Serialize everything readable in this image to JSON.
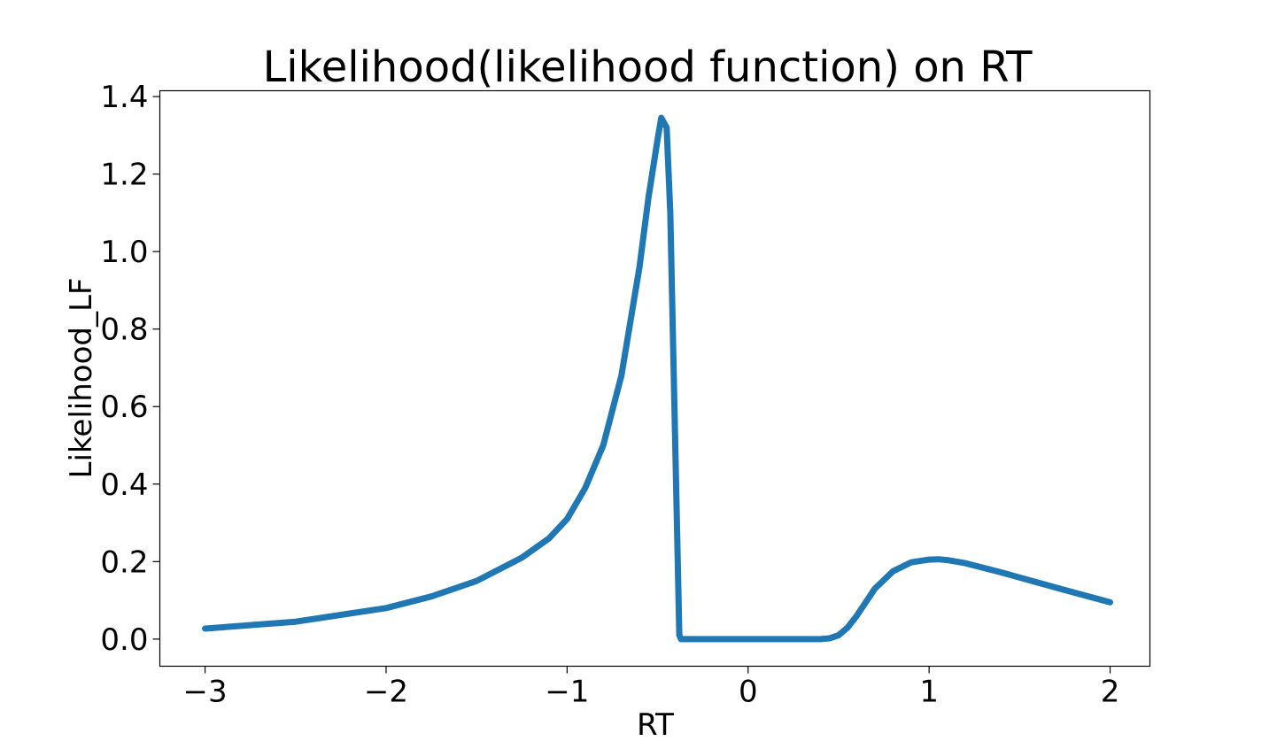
{
  "chart_data": {
    "type": "line",
    "title": "Likelihood(likelihood function) on RT",
    "xlabel": "RT",
    "ylabel": "Likelihood_LF",
    "xlim": [
      -3.25,
      2.22
    ],
    "ylim": [
      -0.07,
      1.415
    ],
    "xticks": [
      -3,
      -2,
      -1,
      0,
      1,
      2
    ],
    "xtick_labels": [
      "−3",
      "−2",
      "−1",
      "0",
      "1",
      "2"
    ],
    "yticks": [
      0.0,
      0.2,
      0.4,
      0.6,
      0.8,
      1.0,
      1.2,
      1.4
    ],
    "ytick_labels": [
      "0.0",
      "0.2",
      "0.4",
      "0.6",
      "0.8",
      "1.0",
      "1.2",
      "1.4"
    ],
    "grid": false,
    "series": [
      {
        "color": "#1f77b4",
        "x": [
          -3.0,
          -2.5,
          -2.0,
          -1.75,
          -1.5,
          -1.25,
          -1.1,
          -1.0,
          -0.9,
          -0.8,
          -0.7,
          -0.6,
          -0.55,
          -0.5,
          -0.48,
          -0.45,
          -0.43,
          -0.38,
          -0.37,
          -0.35,
          0.0,
          0.4,
          0.45,
          0.5,
          0.55,
          0.6,
          0.7,
          0.8,
          0.9,
          1.0,
          1.05,
          1.1,
          1.2,
          1.4,
          1.6,
          1.8,
          2.0
        ],
        "y": [
          0.027,
          0.045,
          0.08,
          0.11,
          0.15,
          0.21,
          0.26,
          0.31,
          0.39,
          0.5,
          0.68,
          0.96,
          1.14,
          1.29,
          1.345,
          1.32,
          1.1,
          0.01,
          0.0,
          0.0,
          0.0,
          0.0,
          0.002,
          0.01,
          0.03,
          0.06,
          0.13,
          0.175,
          0.198,
          0.205,
          0.206,
          0.204,
          0.196,
          0.172,
          0.146,
          0.12,
          0.095
        ]
      }
    ]
  }
}
